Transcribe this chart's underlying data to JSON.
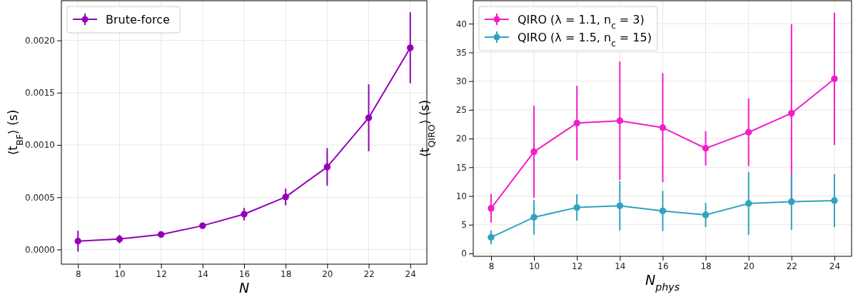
{
  "chart_data": [
    {
      "type": "line",
      "xlabel": "N",
      "ylabel": "⟨t$_{BF}$⟩ (s)",
      "x": [
        8,
        10,
        12,
        14,
        16,
        18,
        20,
        22,
        24
      ],
      "xlim": [
        7.2,
        24.8
      ],
      "xticks": [
        8,
        10,
        12,
        14,
        16,
        18,
        20,
        22,
        24
      ],
      "ylim": [
        -0.00014,
        0.00238
      ],
      "yticks": [
        {
          "value": 0,
          "label": "0.0000"
        },
        {
          "value": 0.0005,
          "label": "0.0005"
        },
        {
          "value": 0.001,
          "label": "0.0010"
        },
        {
          "value": 0.0015,
          "label": "0.0015"
        },
        {
          "value": 0.002,
          "label": "0.0020"
        }
      ],
      "grid": true,
      "legend": "top left",
      "marker": "circle",
      "line_style": "solid",
      "series": [
        {
          "name": "Brute-force",
          "color": "#9400b8",
          "values": [
            8e-05,
            0.0001,
            0.000144,
            0.000228,
            0.000338,
            0.000503,
            0.00079,
            0.00126,
            0.00193
          ],
          "errors": [
            0.0001,
            4e-05,
            1e-05,
            2e-05,
            6e-05,
            8e-05,
            0.00018,
            0.00032,
            0.00034
          ]
        }
      ]
    },
    {
      "type": "line",
      "xlabel": "N$_{phys}$",
      "ylabel": "⟨t$_{QIRO}$⟩ (s)",
      "x": [
        8,
        10,
        12,
        14,
        16,
        18,
        20,
        22,
        24
      ],
      "xlim": [
        7.17,
        24.8
      ],
      "xticks": [
        8,
        10,
        12,
        14,
        16,
        18,
        20,
        22,
        24
      ],
      "ylim": [
        -0.5,
        44
      ],
      "yticks": [
        0,
        5,
        10,
        15,
        20,
        25,
        30,
        35,
        40
      ],
      "grid": true,
      "legend": "top left",
      "marker": "circle",
      "line_style": "solid",
      "series": [
        {
          "name": "QIRO (λ = 1.1, n$_{c}$ = 3)",
          "color": "#f21ec8",
          "values": [
            7.85,
            17.7,
            22.7,
            23.1,
            21.9,
            18.3,
            21.1,
            24.4,
            30.4
          ],
          "errors": [
            2.5,
            8,
            6.5,
            10.3,
            9.5,
            3,
            5.9,
            15.5,
            11.5
          ]
        },
        {
          "name": "QIRO (λ = 1.5, n$_{c}$ = 15)",
          "color": "#2fa3bf",
          "values": [
            2.8,
            6.3,
            8.0,
            8.3,
            7.4,
            6.7,
            8.7,
            9.0,
            9.2
          ],
          "errors": [
            1.2,
            3,
            2.3,
            4.3,
            3.5,
            2.1,
            5.5,
            4.9,
            4.6
          ]
        }
      ]
    }
  ]
}
